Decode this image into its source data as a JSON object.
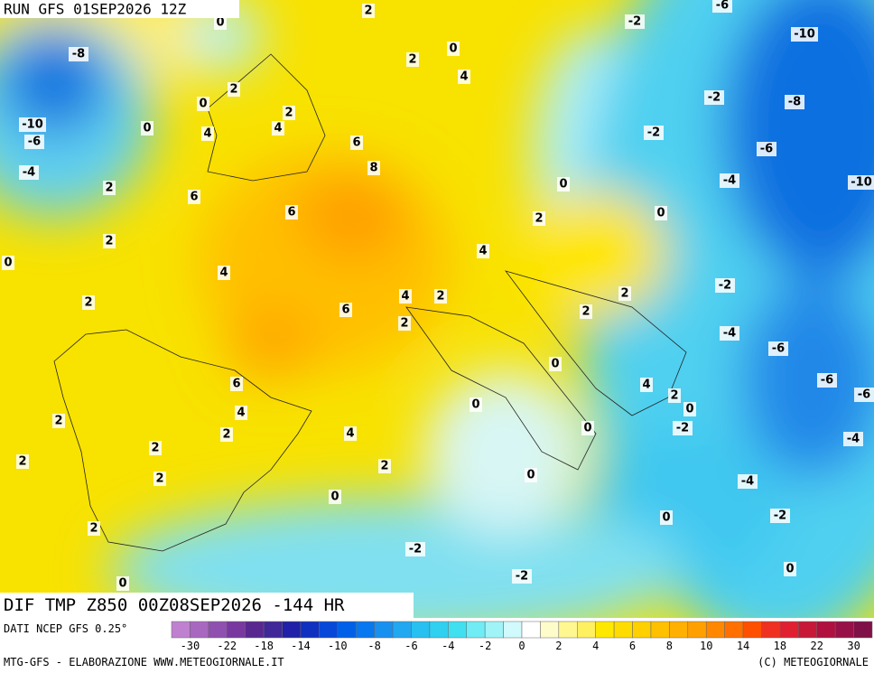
{
  "header": {
    "run": "RUN GFS 01SEP2026 12Z"
  },
  "map": {
    "labels": [
      "0",
      "2",
      "-6",
      "-2",
      "-10",
      "-8",
      "2",
      "0",
      "4",
      "2",
      "0",
      "-2",
      "-8",
      "2",
      "-10",
      "-6",
      "0",
      "4",
      "4",
      "-2",
      "6",
      "-6",
      "-4",
      "8",
      "-4",
      "-10",
      "2",
      "6",
      "0",
      "6",
      "2",
      "0",
      "2",
      "4",
      "0",
      "4",
      "-2",
      "2",
      "2",
      "4",
      "2",
      "6",
      "2",
      "2",
      "-4",
      "-6",
      "0",
      "-6",
      "-6",
      "6",
      "4",
      "2",
      "0",
      "4",
      "0",
      "0",
      "-2",
      "2",
      "2",
      "4",
      "-4",
      "2",
      "2",
      "2",
      "2",
      "0",
      "-4",
      "0",
      "-2",
      "0",
      "2",
      "-2",
      "-2",
      "0",
      "0"
    ]
  },
  "footer": {
    "title": "DIF TMP Z850 00Z08SEP2026 -144 HR",
    "source": "DATI NCEP GFS 0.25°",
    "credit_left": "MTG-GFS - ELABORAZIONE WWW.METEOGIORNALE.IT",
    "credit_right": "(C) METEOGIORNALE"
  },
  "colorbar": {
    "labels": [
      "-30",
      "-22",
      "-18",
      "-14",
      "-10",
      "-8",
      "-6",
      "-4",
      "-2",
      "0",
      "2",
      "4",
      "6",
      "8",
      "10",
      "14",
      "18",
      "22",
      "30"
    ],
    "colors": [
      "#c080d0",
      "#a868c0",
      "#9050b0",
      "#7838a0",
      "#582890",
      "#402898",
      "#2020a8",
      "#1030c0",
      "#0848d8",
      "#0060e8",
      "#0878f0",
      "#1890f0",
      "#20a8f0",
      "#28c0f0",
      "#30d0f0",
      "#40e0f0",
      "#70ecf4",
      "#a0f4f8",
      "#d0fafc",
      "#ffffff",
      "#fffccc",
      "#fff890",
      "#fff060",
      "#ffe800",
      "#ffdc00",
      "#ffd000",
      "#ffc000",
      "#ffb000",
      "#ffa000",
      "#ff8800",
      "#ff7000",
      "#ff5000",
      "#f03020",
      "#e02030",
      "#c81838",
      "#b01040",
      "#981048",
      "#801048"
    ]
  }
}
